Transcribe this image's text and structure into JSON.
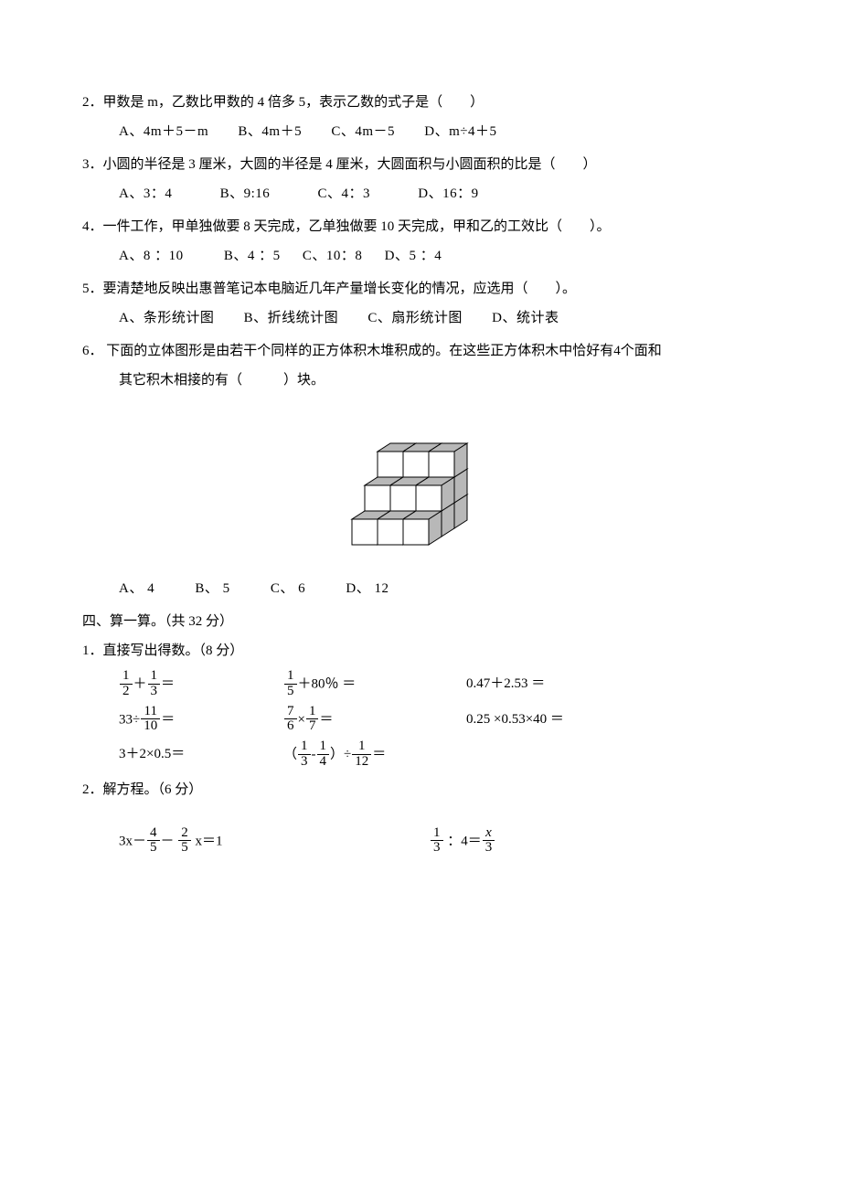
{
  "q2": {
    "num": "2．",
    "text": "甲数是 m，乙数比甲数的 4 倍多 5，表示乙数的式子是（　　）",
    "opts": {
      "a": "A、4m＋5－m",
      "b": "B、4m＋5",
      "c": "C、4m－5",
      "d": "D、m÷4＋5"
    }
  },
  "q3": {
    "num": "3．",
    "text": "小圆的半径是 3 厘米，大圆的半径是 4 厘米，大圆面积与小圆面积的比是（　　）",
    "opts": {
      "a": "A、3：4",
      "b": "B、9:16",
      "c": "C、4：3",
      "d": "D、16：9"
    }
  },
  "q4": {
    "num": "4．",
    "text": "一件工作，甲单独做要 8 天完成，乙单独做要 10 天完成，甲和乙的工效比（　　）。",
    "opts": {
      "a": "A、8 ：10",
      "b": "B、4 ：5",
      "c": "C、10：8",
      "d": "D、5 ：4"
    }
  },
  "q5": {
    "num": "5．",
    "text": "要清楚地反映出惠普笔记本电脑近几年产量增长变化的情况，应选用（　　）。",
    "opts": {
      "a": "A、条形统计图",
      "b": "B、折线统计图",
      "c": "C、扇形统计图",
      "d": "D、统计表"
    }
  },
  "q6": {
    "num": "6．",
    "line1": "下面的立体图形是由若干个同样的正方体积木堆积成的。在这些正方体积木中恰好有4个面和",
    "line2": "其它积木相接的有（　　　）块。",
    "opts": {
      "a": "A、 4",
      "b": "B、 5",
      "c": "C、 6",
      "d": "D、 12"
    }
  },
  "section4": {
    "title": "四、算一算。（共 32 分）"
  },
  "s4q1": {
    "title": "1．直接写出得数。（8 分）"
  },
  "calc": {
    "r1c1": {
      "a_num": "1",
      "a_den": "2",
      "op": "＋",
      "b_num": "1",
      "b_den": "3",
      "tail": "＝"
    },
    "r1c2": {
      "a_num": "1",
      "a_den": "5",
      "tail": "＋80％ ＝"
    },
    "r1c3": "0.47＋2.53 ＝",
    "r2c1": {
      "pre": "33÷",
      "a_num": "11",
      "a_den": "10",
      "tail": "＝"
    },
    "r2c2": {
      "a_num": "7",
      "a_den": "6",
      "op": "×",
      "b_num": "1",
      "b_den": "7",
      "tail": "＝"
    },
    "r2c3": "0.25 ×0.53×40 ＝",
    "r3c1": "3＋2×0.5＝",
    "r3c2": {
      "open": "（",
      "a_num": "1",
      "a_den": "3",
      "op": "-",
      "b_num": "1",
      "b_den": "4",
      "close": "）÷",
      "c_num": "1",
      "c_den": "12",
      "tail": "＝"
    }
  },
  "s4q2": {
    "title": "2．解方程。（6 分）"
  },
  "eq1": {
    "pre": "3x－",
    "a_num": "4",
    "a_den": "5",
    "mid": "－ ",
    "b_num": "2",
    "b_den": "5",
    "tail": " x＝1"
  },
  "eq2": {
    "a_num": "1",
    "a_den": "3",
    "mid": " ：4＝",
    "b_num_italic": "x",
    "b_den": "3"
  },
  "figure": {
    "fill_dark": "#b8b8b8",
    "fill_light": "#ffffff",
    "stroke": "#000000"
  }
}
